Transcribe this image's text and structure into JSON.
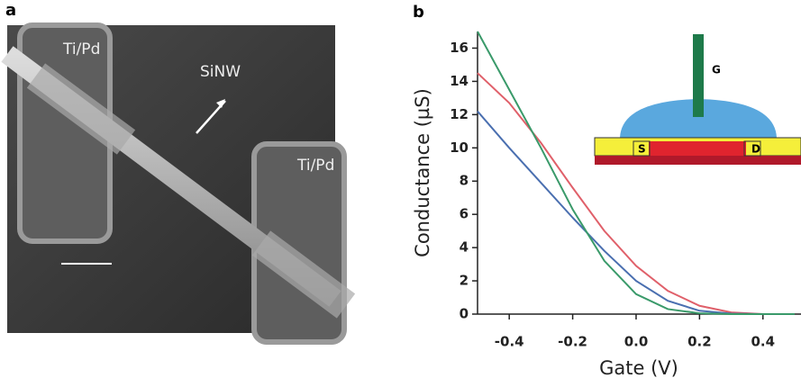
{
  "image_panel": {
    "label": "a",
    "annotations": [
      "Ti/Pd",
      "SiNW",
      "Ti/Pd"
    ]
  },
  "chart_data": {
    "type": "line",
    "panel_label": "b",
    "xlabel": "Gate (V)",
    "ylabel": "Conductance (µS)",
    "x": [
      -0.5,
      -0.4,
      -0.3,
      -0.2,
      -0.1,
      0.0,
      0.1,
      0.2,
      0.3,
      0.4,
      0.5
    ],
    "series": [
      {
        "color": "#e0606a",
        "values": [
          14.5,
          12.7,
          10.3,
          7.6,
          5.0,
          2.9,
          1.4,
          0.5,
          0.1,
          0,
          0
        ]
      },
      {
        "color": "#4a6fb0",
        "values": [
          12.2,
          10.0,
          7.9,
          5.8,
          3.8,
          2.0,
          0.8,
          0.2,
          0.03,
          0,
          0
        ]
      },
      {
        "color": "#3a9a6a",
        "values": [
          17,
          13.5,
          10,
          6.3,
          3.2,
          1.2,
          0.3,
          0.05,
          0,
          0,
          0
        ]
      }
    ],
    "xlim": [
      -0.5,
      0.52
    ],
    "ylim": [
      0,
      17
    ],
    "xticks": [
      -0.4,
      -0.2,
      {
        "value": 0,
        "label": "0.0"
      },
      0.2,
      0.4
    ],
    "yticks": [
      0,
      2,
      4,
      6,
      8,
      10,
      12,
      14,
      16
    ],
    "inset_labels": [
      "G",
      "S",
      "D"
    ]
  }
}
